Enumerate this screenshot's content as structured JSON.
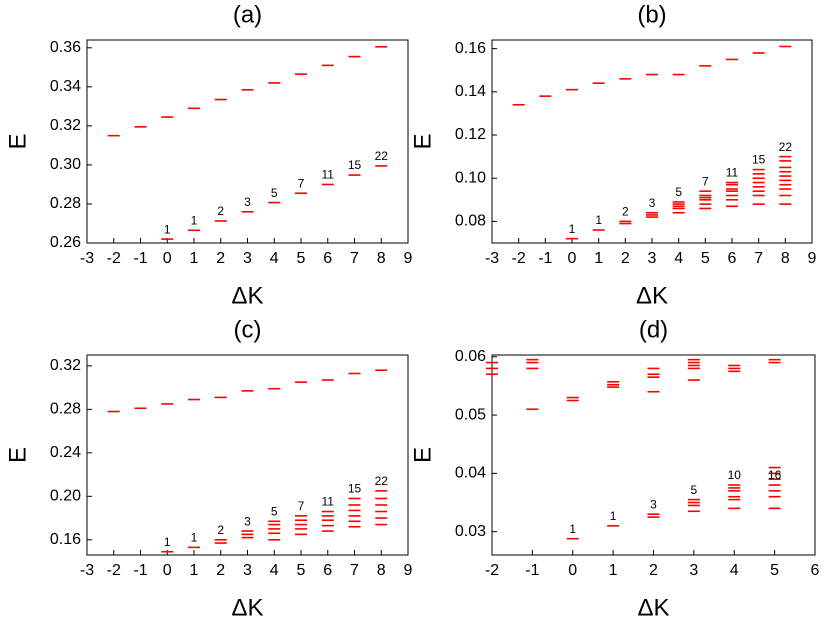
{
  "chart_data": [
    {
      "type": "scatter",
      "title": "(a)",
      "xlabel": "ΔK",
      "ylabel": "E",
      "color": "#ff0000",
      "xlim": [
        -3,
        9
      ],
      "xticks": [
        -3,
        -2,
        -1,
        0,
        1,
        2,
        3,
        4,
        5,
        6,
        7,
        8,
        9
      ],
      "ylim": [
        0.26,
        0.364
      ],
      "yticks": [
        0.26,
        0.28,
        {
          "value": 0.3,
          "label": "0.30"
        },
        0.32,
        0.34,
        0.36
      ],
      "x": [
        -2,
        -1,
        0,
        1,
        2,
        3,
        4,
        5,
        6,
        7,
        8,
        0,
        1,
        2,
        3,
        4,
        5,
        6,
        7,
        8
      ],
      "values": [
        0.315,
        0.3195,
        0.3245,
        0.329,
        0.3335,
        0.3385,
        0.342,
        0.3465,
        0.351,
        0.3555,
        0.3605,
        0.262,
        0.2665,
        0.2713,
        0.276,
        0.2807,
        0.2855,
        0.29,
        0.2948,
        0.2995
      ],
      "annotations": [
        {
          "text": "1",
          "x": 0
        },
        {
          "text": "1",
          "x": 1
        },
        {
          "text": "2",
          "x": 2
        },
        {
          "text": "3",
          "x": 3
        },
        {
          "text": "5",
          "x": 4
        },
        {
          "text": "7",
          "x": 5
        },
        {
          "text": "11",
          "x": 6
        },
        {
          "text": "15",
          "x": 7
        },
        {
          "text": "22",
          "x": 8
        }
      ]
    },
    {
      "type": "scatter",
      "title": "(b)",
      "xlabel": "ΔK",
      "ylabel": "E",
      "color": "#ff0000",
      "xlim": [
        -3,
        9
      ],
      "xticks": [
        -3,
        -2,
        -1,
        0,
        1,
        2,
        3,
        4,
        5,
        6,
        7,
        8,
        9
      ],
      "ylim": [
        0.07,
        0.164
      ],
      "yticks": [
        0.08,
        {
          "value": 0.1,
          "label": "0.10"
        },
        0.12,
        0.14,
        0.16
      ],
      "x": [
        -2,
        -1,
        0,
        1,
        2,
        3,
        4,
        5,
        6,
        7,
        8,
        0,
        1,
        2,
        2,
        3,
        3,
        3,
        4,
        4,
        4,
        4,
        4,
        5,
        5,
        5,
        5,
        5,
        5,
        6,
        6,
        6,
        6,
        6,
        6,
        6,
        7,
        7,
        7,
        7,
        7,
        7,
        7,
        7,
        8,
        8,
        8,
        8,
        8,
        8,
        8,
        8,
        8,
        8
      ],
      "values": [
        0.134,
        0.138,
        0.141,
        0.144,
        0.146,
        0.148,
        0.148,
        0.152,
        0.155,
        0.158,
        0.161,
        0.072,
        0.076,
        0.079,
        0.08,
        0.082,
        0.083,
        0.084,
        0.084,
        0.086,
        0.087,
        0.088,
        0.089,
        0.086,
        0.088,
        0.09,
        0.091,
        0.092,
        0.094,
        0.087,
        0.09,
        0.092,
        0.094,
        0.095,
        0.097,
        0.098,
        0.088,
        0.092,
        0.094,
        0.096,
        0.098,
        0.1,
        0.102,
        0.104,
        0.088,
        0.092,
        0.095,
        0.097,
        0.099,
        0.101,
        0.103,
        0.105,
        0.108,
        0.11
      ],
      "annotations": [
        {
          "text": "1",
          "x": 0
        },
        {
          "text": "1",
          "x": 1
        },
        {
          "text": "2",
          "x": 2
        },
        {
          "text": "3",
          "x": 3
        },
        {
          "text": "5",
          "x": 4
        },
        {
          "text": "7",
          "x": 5
        },
        {
          "text": "11",
          "x": 6
        },
        {
          "text": "15",
          "x": 7
        },
        {
          "text": "22",
          "x": 8
        }
      ]
    },
    {
      "type": "scatter",
      "title": "(c)",
      "xlabel": "ΔK",
      "ylabel": "E",
      "color": "#ff0000",
      "xlim": [
        -3,
        9
      ],
      "xticks": [
        -3,
        -2,
        -1,
        0,
        1,
        2,
        3,
        4,
        5,
        6,
        7,
        8,
        9
      ],
      "ylim": [
        0.146,
        0.33
      ],
      "yticks": [
        0.16,
        {
          "value": 0.2,
          "label": "0.20"
        },
        0.24,
        0.28,
        0.32
      ],
      "x": [
        -2,
        -1,
        0,
        1,
        2,
        3,
        4,
        5,
        6,
        7,
        8,
        0,
        1,
        2,
        2,
        3,
        3,
        3,
        4,
        4,
        4,
        4,
        4,
        5,
        5,
        5,
        5,
        5,
        6,
        6,
        6,
        6,
        6,
        7,
        7,
        7,
        7,
        7,
        7,
        8,
        8,
        8,
        8,
        8,
        8
      ],
      "values": [
        0.278,
        0.281,
        0.285,
        0.289,
        0.291,
        0.297,
        0.299,
        0.305,
        0.307,
        0.313,
        0.316,
        0.149,
        0.153,
        0.157,
        0.16,
        0.162,
        0.165,
        0.168,
        0.16,
        0.166,
        0.17,
        0.174,
        0.177,
        0.165,
        0.17,
        0.174,
        0.178,
        0.182,
        0.168,
        0.173,
        0.178,
        0.182,
        0.186,
        0.172,
        0.177,
        0.182,
        0.187,
        0.192,
        0.198,
        0.174,
        0.18,
        0.186,
        0.192,
        0.198,
        0.205
      ],
      "annotations": [
        {
          "text": "1",
          "x": 0
        },
        {
          "text": "1",
          "x": 1
        },
        {
          "text": "2",
          "x": 2
        },
        {
          "text": "3",
          "x": 3
        },
        {
          "text": "5",
          "x": 4
        },
        {
          "text": "7",
          "x": 5
        },
        {
          "text": "11",
          "x": 6
        },
        {
          "text": "15",
          "x": 7
        },
        {
          "text": "22",
          "x": 8
        }
      ]
    },
    {
      "type": "scatter",
      "title": "(d)",
      "xlabel": "ΔK",
      "ylabel": "E",
      "color": "#ff0000",
      "xlim": [
        -2,
        6
      ],
      "xticks": [
        -2,
        -1,
        0,
        1,
        2,
        3,
        4,
        5,
        6
      ],
      "ylim": [
        0.026,
        0.0603
      ],
      "yticks": [
        0.03,
        0.04,
        0.05,
        0.06
      ],
      "x": [
        -2,
        -2,
        -2,
        -1,
        -1,
        -1,
        -1,
        0,
        0,
        1,
        1,
        1,
        2,
        2,
        2,
        2,
        3,
        3,
        3,
        3,
        3,
        4,
        4,
        4,
        5,
        5,
        0,
        1,
        2,
        2,
        3,
        3,
        3,
        3,
        4,
        4,
        4,
        4,
        4,
        4,
        5,
        5,
        5,
        5,
        5,
        5,
        5
      ],
      "values": [
        0.057,
        0.058,
        0.059,
        0.051,
        0.058,
        0.059,
        0.0595,
        0.0525,
        0.053,
        0.0548,
        0.0552,
        0.0557,
        0.054,
        0.0565,
        0.057,
        0.058,
        0.056,
        0.058,
        0.0585,
        0.059,
        0.0595,
        0.0575,
        0.058,
        0.0585,
        0.059,
        0.0595,
        0.0288,
        0.031,
        0.0325,
        0.033,
        0.0335,
        0.0345,
        0.035,
        0.0355,
        0.034,
        0.0355,
        0.036,
        0.037,
        0.0375,
        0.038,
        0.034,
        0.036,
        0.037,
        0.038,
        0.039,
        0.04,
        0.041
      ],
      "annotations": [
        {
          "text": "1",
          "x": 0
        },
        {
          "text": "1",
          "x": 1
        },
        {
          "text": "3",
          "x": 2
        },
        {
          "text": "5",
          "x": 3
        },
        {
          "text": "10",
          "x": 4
        },
        {
          "text": "16",
          "x": 5
        }
      ]
    }
  ]
}
